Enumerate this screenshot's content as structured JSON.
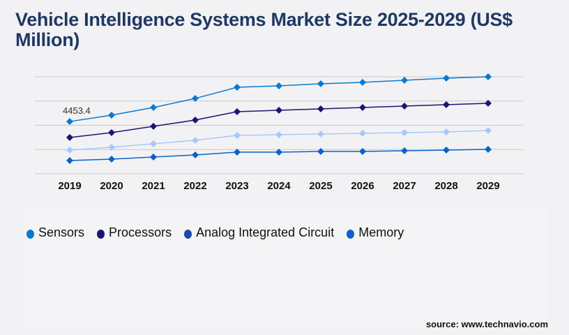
{
  "title": "Vehicle Intelligence Systems Market Size 2025-2029 (US$ Million)",
  "source": "source: www.technavio.com",
  "chart_data": {
    "type": "line",
    "title": "Vehicle Intelligence Systems Market Size 2025-2029 (US$ Million)",
    "x": [
      "2019",
      "2020",
      "2021",
      "2022",
      "2023",
      "2024",
      "2025",
      "2026",
      "2027",
      "2028",
      "2029"
    ],
    "ylim": [
      0,
      8260
    ],
    "grid": true,
    "legend_position": "bottom",
    "annotations": [
      {
        "series": "Sensors",
        "x": "2019",
        "text": "4453.4"
      }
    ],
    "series": [
      {
        "name": "Sensors",
        "color": "#0a7ad0",
        "marker_color": "#0a7ad0",
        "values": [
          4453,
          4990,
          5643,
          6415,
          7366,
          7484,
          7663,
          7781,
          7960,
          8138,
          8257
        ]
      },
      {
        "name": "Processors",
        "color": "#1a1570",
        "marker_color": "#1a1570",
        "values": [
          3089,
          3505,
          4039,
          4574,
          5287,
          5405,
          5524,
          5643,
          5762,
          5881,
          5999
        ]
      },
      {
        "name": "Analog Integrated Circuit",
        "color": "#a8c8fc",
        "marker_color": "#1a4aa8",
        "values": [
          2020,
          2257,
          2554,
          2851,
          3267,
          3326,
          3386,
          3445,
          3505,
          3564,
          3683
        ]
      },
      {
        "name": "Memory",
        "color": "#0a62c8",
        "marker_color": "#0a62c8",
        "values": [
          1129,
          1247,
          1426,
          1604,
          1841,
          1841,
          1901,
          1901,
          1960,
          2020,
          2079
        ]
      }
    ]
  }
}
